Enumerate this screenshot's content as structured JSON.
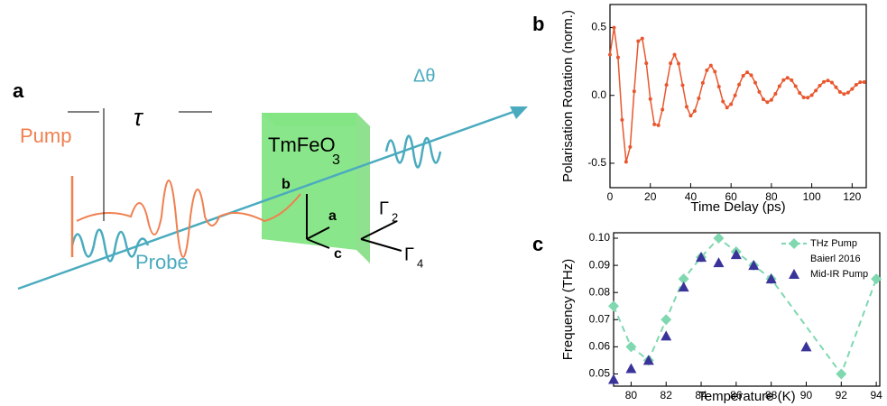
{
  "diagram": {
    "panel_label": "a",
    "pump": "Pump",
    "probe": "Probe",
    "delay": "τ",
    "crystal": "TmFeO",
    "crystal_sub": "3",
    "rotation": "Δθ",
    "axis_b": "b",
    "axis_a": "a",
    "axis_c": "c",
    "mode_2": "Γ",
    "mode_2_sub": "2",
    "mode_4": "Γ",
    "mode_4_sub": "4"
  },
  "chart_data": [
    {
      "type": "line",
      "panel_label": "b",
      "x_label": "Time Delay (ps)",
      "y_label": "Polarisation Rotation (norm.)",
      "x": [
        0,
        2,
        4,
        6,
        8,
        10,
        12,
        14,
        16,
        18,
        20,
        22,
        24,
        26,
        28,
        30,
        32,
        34,
        36,
        38,
        40,
        42,
        44,
        46,
        48,
        50,
        52,
        54,
        56,
        58,
        60,
        62,
        64,
        66,
        68,
        70,
        72,
        74,
        76,
        78,
        80,
        82,
        84,
        86,
        88,
        90,
        92,
        94,
        96,
        98,
        100,
        102,
        104,
        106,
        108,
        110,
        112,
        114,
        116,
        118,
        120,
        122,
        124,
        126
      ],
      "series": [
        {
          "color": "#e8572e",
          "values": [
            0.3,
            0.5,
            0.28,
            -0.18,
            -0.49,
            -0.38,
            0.03,
            0.4,
            0.42,
            0.237,
            -0.027,
            -0.214,
            -0.22,
            -0.105,
            0.077,
            0.237,
            0.3,
            0.234,
            0.075,
            -0.084,
            -0.15,
            -0.115,
            -0.022,
            0.092,
            0.185,
            0.22,
            0.175,
            0.065,
            -0.045,
            -0.09,
            -0.065,
            0.0,
            0.08,
            0.145,
            0.17,
            0.149,
            0.094,
            0.026,
            -0.029,
            -0.05,
            -0.033,
            0.012,
            0.068,
            0.113,
            0.13,
            0.112,
            0.068,
            0.018,
            -0.015,
            -0.017,
            0.002,
            0.036,
            0.072,
            0.1,
            0.11,
            0.095,
            0.06,
            0.025,
            0.01,
            0.021,
            0.047,
            0.078,
            0.097,
            0.098
          ]
        }
      ],
      "xlim": [
        0,
        127
      ],
      "xticks": [
        0,
        20,
        40,
        60,
        80,
        100,
        120
      ],
      "ylim": [
        -0.68,
        0.67
      ],
      "yticks": [
        -0.5,
        {
          "value": 0,
          "label": "0.0"
        },
        0.5
      ]
    },
    {
      "type": "scatter",
      "panel_label": "c",
      "x_label": "Temperature (K)",
      "y_label": "Frequency (THz)",
      "legend_note": "Baierl 2016",
      "series": [
        {
          "name": "THz Pump",
          "color": "#7fd8b0",
          "marker": "diamond",
          "dashed": true,
          "x": [
            79,
            80,
            81,
            82,
            83,
            84,
            85,
            86,
            87,
            88,
            92,
            94
          ],
          "values": [
            0.075,
            0.06,
            0.055,
            0.07,
            0.085,
            0.093,
            0.1,
            0.095,
            0.09,
            0.085,
            0.05,
            0.085
          ]
        },
        {
          "name": "Mid-IR Pump",
          "color": "#3a3399",
          "marker": "triangle",
          "dashed": false,
          "x": [
            79,
            80,
            81,
            82,
            83,
            84,
            85,
            86,
            87,
            88,
            90
          ],
          "values": [
            0.048,
            0.052,
            0.055,
            0.064,
            0.082,
            0.093,
            0.091,
            0.094,
            0.09,
            0.085,
            0.06
          ]
        }
      ],
      "xlim": [
        79,
        94.2
      ],
      "xticks": [
        80,
        82,
        84,
        86,
        88,
        90,
        92,
        94
      ],
      "ylim": [
        0.0455,
        0.102
      ],
      "yticks": [
        0.05,
        0.06,
        0.07,
        0.08,
        0.09,
        {
          "value": 0.1,
          "label": "0.10"
        }
      ]
    }
  ]
}
